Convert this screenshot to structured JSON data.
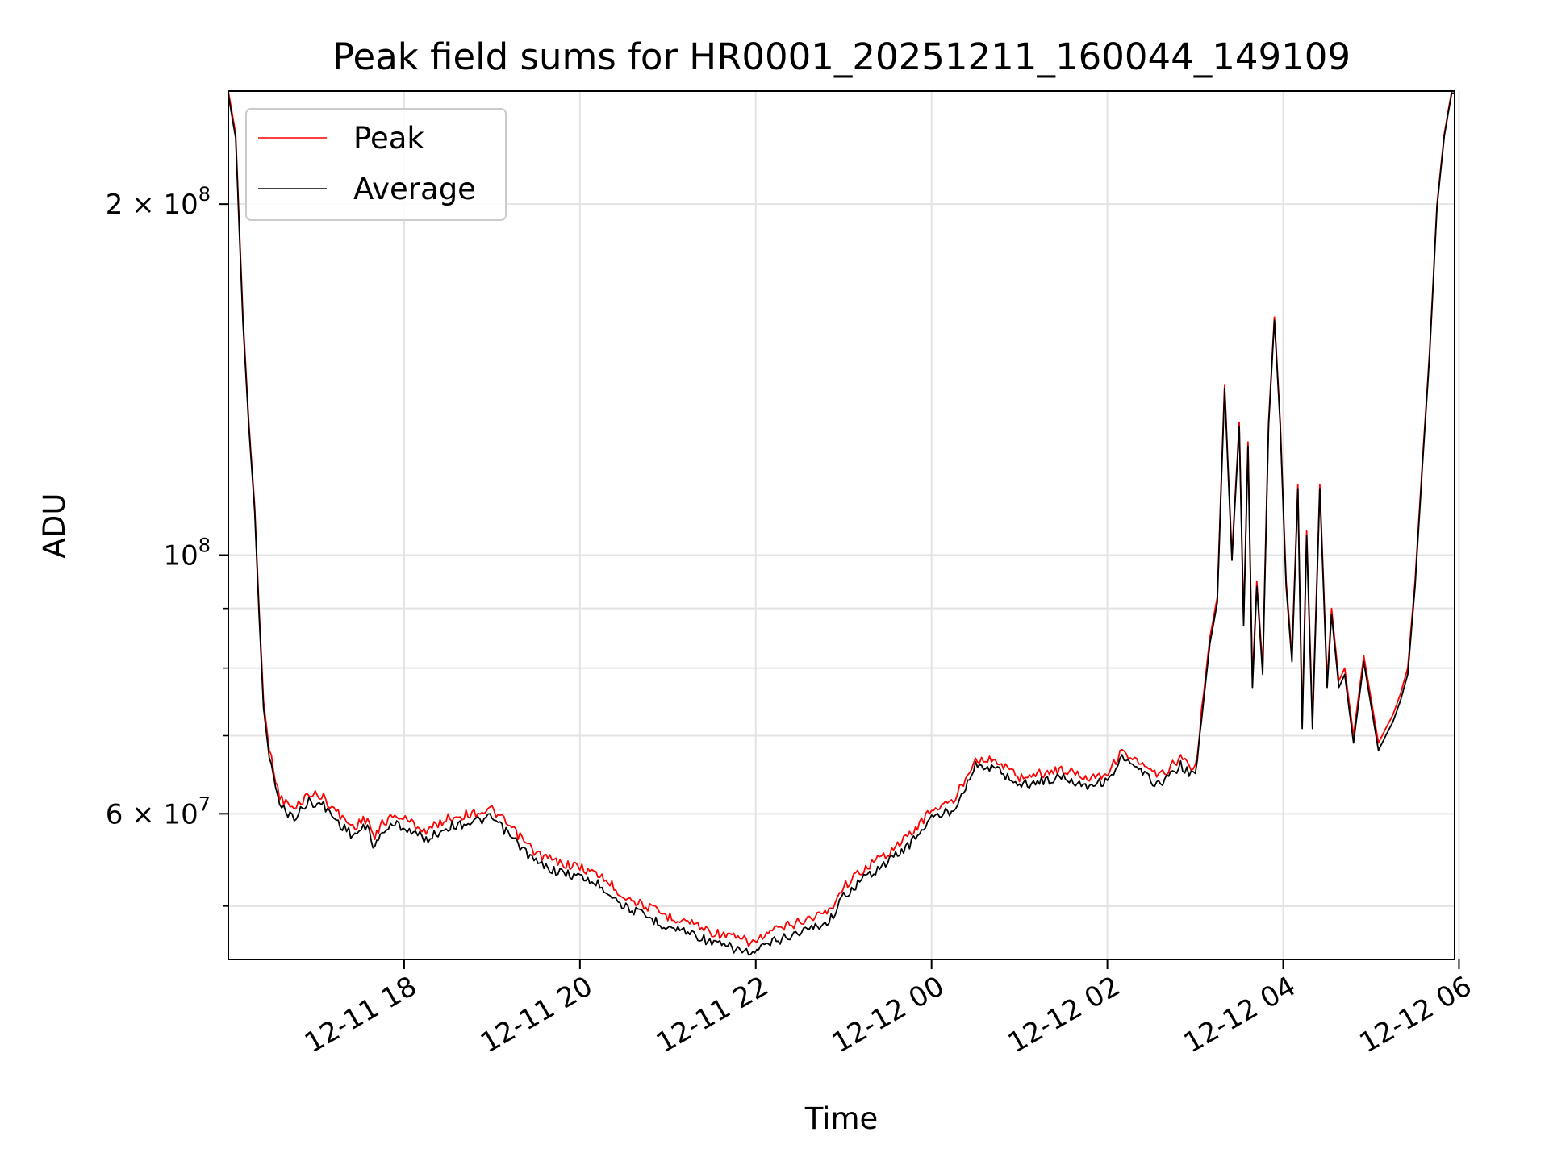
{
  "chart_data": {
    "type": "line",
    "title": "Peak field sums for HR0001_20251211_160044_149109",
    "xlabel": "Time",
    "ylabel": "ADU",
    "y_scale": "log",
    "ylim": [
      45000000,
      250000000
    ],
    "xlim": [
      "2025-12-11 16:00",
      "2025-12-12 05:57"
    ],
    "grid": true,
    "legend": "top-left",
    "x_ticks": [
      {
        "value": "2025-12-11 18:00",
        "label": "12-11 18"
      },
      {
        "value": "2025-12-11 20:00",
        "label": "12-11 20"
      },
      {
        "value": "2025-12-11 22:00",
        "label": "12-11 22"
      },
      {
        "value": "2025-12-12 00:00",
        "label": "12-12 00"
      },
      {
        "value": "2025-12-12 02:00",
        "label": "12-12 02"
      },
      {
        "value": "2025-12-12 04:00",
        "label": "12-12 04"
      },
      {
        "value": "2025-12-12 06:00",
        "label": "12-12 06"
      }
    ],
    "y_major_ticks": [
      {
        "value": 60000000,
        "base": "6 × 10",
        "exp": "7"
      },
      {
        "value": 100000000,
        "base": "10",
        "exp": "8"
      },
      {
        "value": 200000000,
        "base": "2 × 10",
        "exp": "8"
      }
    ],
    "y_minor_ticks": [
      50000000,
      70000000,
      80000000,
      90000000
    ],
    "series": [
      {
        "name": "Peak",
        "color": "#ff0000",
        "x": [
          "2025-12-11 16:00",
          "2025-12-11 16:05",
          "2025-12-11 16:10",
          "2025-12-11 16:14",
          "2025-12-11 16:18",
          "2025-12-11 16:21",
          "2025-12-11 16:24",
          "2025-12-11 16:28",
          "2025-12-11 16:35",
          "2025-12-11 16:45",
          "2025-12-11 16:55",
          "2025-12-11 17:05",
          "2025-12-11 17:15",
          "2025-12-11 17:25",
          "2025-12-11 17:35",
          "2025-12-11 17:40",
          "2025-12-11 17:45",
          "2025-12-11 17:55",
          "2025-12-11 18:05",
          "2025-12-11 18:15",
          "2025-12-11 18:30",
          "2025-12-11 18:45",
          "2025-12-11 19:00",
          "2025-12-11 19:15",
          "2025-12-11 19:30",
          "2025-12-11 19:45",
          "2025-12-11 20:00",
          "2025-12-11 20:15",
          "2025-12-11 20:30",
          "2025-12-11 20:45",
          "2025-12-11 21:00",
          "2025-12-11 21:15",
          "2025-12-11 21:30",
          "2025-12-11 21:45",
          "2025-12-11 21:58",
          "2025-12-11 22:10",
          "2025-12-11 22:30",
          "2025-12-11 22:50",
          "2025-12-11 23:00",
          "2025-12-11 23:15",
          "2025-12-11 23:30",
          "2025-12-11 23:45",
          "2025-12-12 00:00",
          "2025-12-12 00:15",
          "2025-12-12 00:30",
          "2025-12-12 00:45",
          "2025-12-12 01:00",
          "2025-12-12 01:15",
          "2025-12-12 01:30",
          "2025-12-12 01:45",
          "2025-12-12 02:00",
          "2025-12-12 02:10",
          "2025-12-12 02:20",
          "2025-12-12 02:35",
          "2025-12-12 02:50",
          "2025-12-12 03:00",
          "2025-12-12 03:10",
          "2025-12-12 03:15",
          "2025-12-12 03:20",
          "2025-12-12 03:25",
          "2025-12-12 03:30",
          "2025-12-12 03:33",
          "2025-12-12 03:36",
          "2025-12-12 03:39",
          "2025-12-12 03:42",
          "2025-12-12 03:46",
          "2025-12-12 03:50",
          "2025-12-12 03:54",
          "2025-12-12 03:58",
          "2025-12-12 04:02",
          "2025-12-12 04:06",
          "2025-12-12 04:10",
          "2025-12-12 04:13",
          "2025-12-12 04:16",
          "2025-12-12 04:20",
          "2025-12-12 04:25",
          "2025-12-12 04:30",
          "2025-12-12 04:33",
          "2025-12-12 04:38",
          "2025-12-12 04:42",
          "2025-12-12 04:48",
          "2025-12-12 04:55",
          "2025-12-12 05:05",
          "2025-12-12 05:10",
          "2025-12-12 05:15",
          "2025-12-12 05:20",
          "2025-12-12 05:25",
          "2025-12-12 05:30",
          "2025-12-12 05:35",
          "2025-12-12 05:40",
          "2025-12-12 05:45",
          "2025-12-12 05:50",
          "2025-12-12 05:55",
          "2025-12-12 05:57"
        ],
        "y": [
          250000000,
          230000000,
          160000000,
          130000000,
          110000000,
          90000000,
          75000000,
          68000000,
          62000000,
          60500000,
          62500000,
          62000000,
          60000000,
          58500000,
          59500000,
          57000000,
          59000000,
          59800000,
          59000000,
          58000000,
          59500000,
          60000000,
          60500000,
          58000000,
          55500000,
          54500000,
          54000000,
          53000000,
          51000000,
          50000000,
          49000000,
          48500000,
          47500000,
          47000000,
          46500000,
          47500000,
          48500000,
          49500000,
          52000000,
          54000000,
          55500000,
          57500000,
          60500000,
          61500000,
          67000000,
          66500000,
          64500000,
          65000000,
          65500000,
          64500000,
          65000000,
          68000000,
          66500000,
          64500000,
          67000000,
          65500000,
          85000000,
          92000000,
          140000000,
          100000000,
          130000000,
          88000000,
          125000000,
          78000000,
          95000000,
          80000000,
          130000000,
          160000000,
          130000000,
          95000000,
          82000000,
          115000000,
          72000000,
          105000000,
          72000000,
          115000000,
          78000000,
          90000000,
          78000000,
          80000000,
          70000000,
          82000000,
          69000000,
          71000000,
          73000000,
          76000000,
          80000000,
          95000000,
          120000000,
          150000000,
          200000000,
          230000000,
          250000000,
          250000000
        ]
      },
      {
        "name": "Average",
        "color": "#000000",
        "x": [
          "2025-12-11 16:00",
          "2025-12-11 16:05",
          "2025-12-11 16:10",
          "2025-12-11 16:14",
          "2025-12-11 16:18",
          "2025-12-11 16:21",
          "2025-12-11 16:24",
          "2025-12-11 16:28",
          "2025-12-11 16:35",
          "2025-12-11 16:45",
          "2025-12-11 16:55",
          "2025-12-11 17:05",
          "2025-12-11 17:15",
          "2025-12-11 17:25",
          "2025-12-11 17:35",
          "2025-12-11 17:40",
          "2025-12-11 17:45",
          "2025-12-11 17:55",
          "2025-12-11 18:05",
          "2025-12-11 18:15",
          "2025-12-11 18:30",
          "2025-12-11 18:45",
          "2025-12-11 19:00",
          "2025-12-11 19:15",
          "2025-12-11 19:30",
          "2025-12-11 19:45",
          "2025-12-11 20:00",
          "2025-12-11 20:15",
          "2025-12-11 20:30",
          "2025-12-11 20:45",
          "2025-12-11 21:00",
          "2025-12-11 21:15",
          "2025-12-11 21:30",
          "2025-12-11 21:45",
          "2025-12-11 21:58",
          "2025-12-11 22:10",
          "2025-12-11 22:30",
          "2025-12-11 22:50",
          "2025-12-11 23:00",
          "2025-12-11 23:15",
          "2025-12-11 23:30",
          "2025-12-11 23:45",
          "2025-12-12 00:00",
          "2025-12-12 00:15",
          "2025-12-12 00:30",
          "2025-12-12 00:45",
          "2025-12-12 01:00",
          "2025-12-12 01:15",
          "2025-12-12 01:30",
          "2025-12-12 01:45",
          "2025-12-12 02:00",
          "2025-12-12 02:10",
          "2025-12-12 02:20",
          "2025-12-12 02:35",
          "2025-12-12 02:50",
          "2025-12-12 03:00",
          "2025-12-12 03:10",
          "2025-12-12 03:15",
          "2025-12-12 03:20",
          "2025-12-12 03:25",
          "2025-12-12 03:30",
          "2025-12-12 03:33",
          "2025-12-12 03:36",
          "2025-12-12 03:39",
          "2025-12-12 03:42",
          "2025-12-12 03:46",
          "2025-12-12 03:50",
          "2025-12-12 03:54",
          "2025-12-12 03:58",
          "2025-12-12 04:02",
          "2025-12-12 04:06",
          "2025-12-12 04:10",
          "2025-12-12 04:13",
          "2025-12-12 04:16",
          "2025-12-12 04:20",
          "2025-12-12 04:25",
          "2025-12-12 04:30",
          "2025-12-12 04:33",
          "2025-12-12 04:38",
          "2025-12-12 04:42",
          "2025-12-12 04:48",
          "2025-12-12 04:55",
          "2025-12-12 05:05",
          "2025-12-12 05:10",
          "2025-12-12 05:15",
          "2025-12-12 05:20",
          "2025-12-12 05:25",
          "2025-12-12 05:30",
          "2025-12-12 05:35",
          "2025-12-12 05:40",
          "2025-12-12 05:45",
          "2025-12-12 05:50",
          "2025-12-12 05:55",
          "2025-12-12 05:57"
        ],
        "y": [
          248000000,
          228000000,
          158000000,
          129000000,
          109000000,
          89000000,
          74000000,
          67000000,
          61000000,
          59500000,
          61500000,
          61000000,
          59000000,
          57500000,
          58500000,
          56000000,
          58000000,
          58800000,
          58000000,
          57000000,
          58500000,
          59000000,
          59500000,
          57000000,
          54500000,
          53500000,
          53000000,
          52000000,
          50000000,
          49000000,
          48000000,
          47500000,
          46500000,
          46000000,
          45500000,
          46500000,
          47500000,
          48500000,
          51000000,
          53000000,
          54500000,
          56500000,
          59500000,
          60500000,
          66000000,
          65500000,
          63500000,
          64000000,
          64500000,
          63500000,
          64000000,
          67000000,
          65500000,
          63500000,
          66000000,
          64500000,
          84000000,
          91000000,
          139000000,
          99000000,
          129000000,
          87000000,
          124000000,
          77000000,
          94000000,
          79000000,
          129000000,
          159000000,
          129000000,
          94000000,
          81000000,
          114000000,
          71000000,
          104000000,
          71000000,
          114000000,
          77000000,
          89000000,
          77000000,
          79000000,
          69000000,
          81000000,
          68000000,
          70000000,
          72000000,
          75000000,
          79000000,
          94000000,
          119000000,
          149000000,
          199000000,
          229000000,
          249000000,
          249000000
        ]
      }
    ]
  }
}
